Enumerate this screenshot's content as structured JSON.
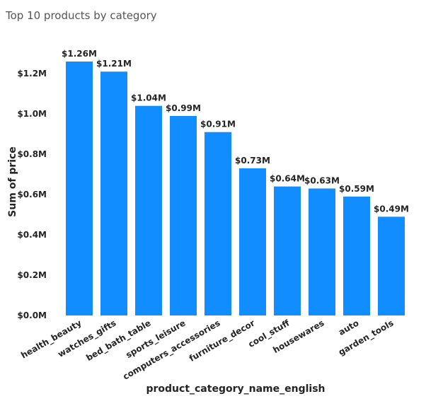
{
  "chart_data": {
    "type": "bar",
    "title": "Top 10 products by category",
    "xlabel": "product_category_name_english",
    "ylabel": "Sum of price",
    "categories": [
      "health_beauty",
      "watches_gifts",
      "bed_bath_table",
      "sports_leisure",
      "computers_accessories",
      "furniture_decor",
      "cool_stuff",
      "housewares",
      "auto",
      "garden_tools"
    ],
    "values": [
      1.26,
      1.21,
      1.04,
      0.99,
      0.91,
      0.73,
      0.64,
      0.63,
      0.59,
      0.49
    ],
    "value_labels": [
      "$1.26M",
      "$1.21M",
      "$1.04M",
      "$0.99M",
      "$0.91M",
      "$0.73M",
      "$0.64M",
      "$0.63M",
      "$0.59M",
      "$0.49M"
    ],
    "y_ticks": [
      0,
      0.2,
      0.4,
      0.6,
      0.8,
      1.0,
      1.2
    ],
    "y_tick_labels": [
      "$0.0M",
      "$0.2M",
      "$0.4M",
      "$0.6M",
      "$0.8M",
      "$1.0M",
      "$1.2M"
    ],
    "ylim": [
      0,
      1.26
    ],
    "grid": false,
    "legend": "none",
    "colors": {
      "bar": "#118DFF",
      "text": "#252423",
      "title": "#555555"
    }
  }
}
